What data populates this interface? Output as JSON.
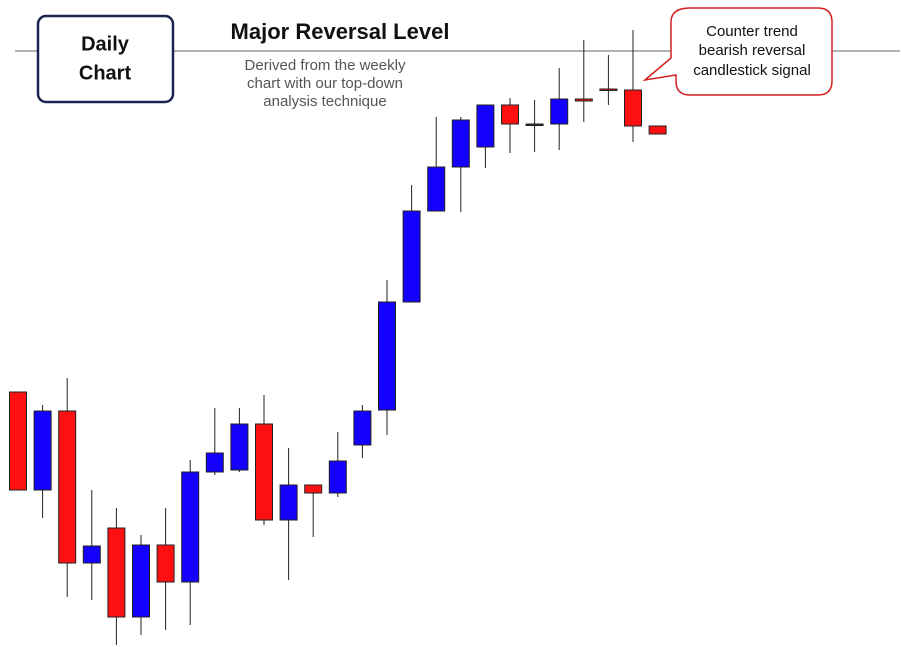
{
  "chart_data": {
    "type": "candlestick",
    "badge_lines": [
      "Daily",
      "Chart"
    ],
    "title": "Major Reversal Level",
    "subtitle_lines": [
      "Derived from the weekly",
      "chart with our top-down",
      "analysis technique"
    ],
    "callout_lines": [
      "Counter trend",
      "bearish reversal",
      "candlestick signal"
    ],
    "reversal_level": 596,
    "up_color": "#1400ff",
    "down_color": "#ff1010",
    "flat_color": "#333333",
    "open": [
      255,
      157,
      236,
      84,
      119,
      30,
      102,
      65,
      175,
      177,
      223,
      127,
      162,
      154,
      202,
      237,
      345,
      436,
      480,
      500,
      542,
      523,
      523,
      548,
      558,
      557,
      521
    ],
    "high": [
      255,
      242,
      269,
      157,
      139,
      112,
      139,
      187,
      239,
      239,
      252,
      199,
      162,
      215,
      242,
      367,
      462,
      530,
      530,
      542,
      549,
      547,
      579,
      607,
      592,
      617,
      521
    ],
    "low": [
      157,
      129,
      50,
      47,
      2,
      12,
      17,
      22,
      172,
      175,
      122,
      67,
      110,
      150,
      189,
      212,
      345,
      436,
      435,
      479,
      494,
      495,
      497,
      525,
      542,
      505,
      513
    ],
    "close": [
      157,
      236,
      84,
      101,
      30,
      102,
      65,
      175,
      194,
      223,
      127,
      162,
      154,
      186,
      236,
      345,
      436,
      480,
      527,
      542,
      523,
      523,
      548,
      546,
      557,
      521,
      513
    ]
  }
}
